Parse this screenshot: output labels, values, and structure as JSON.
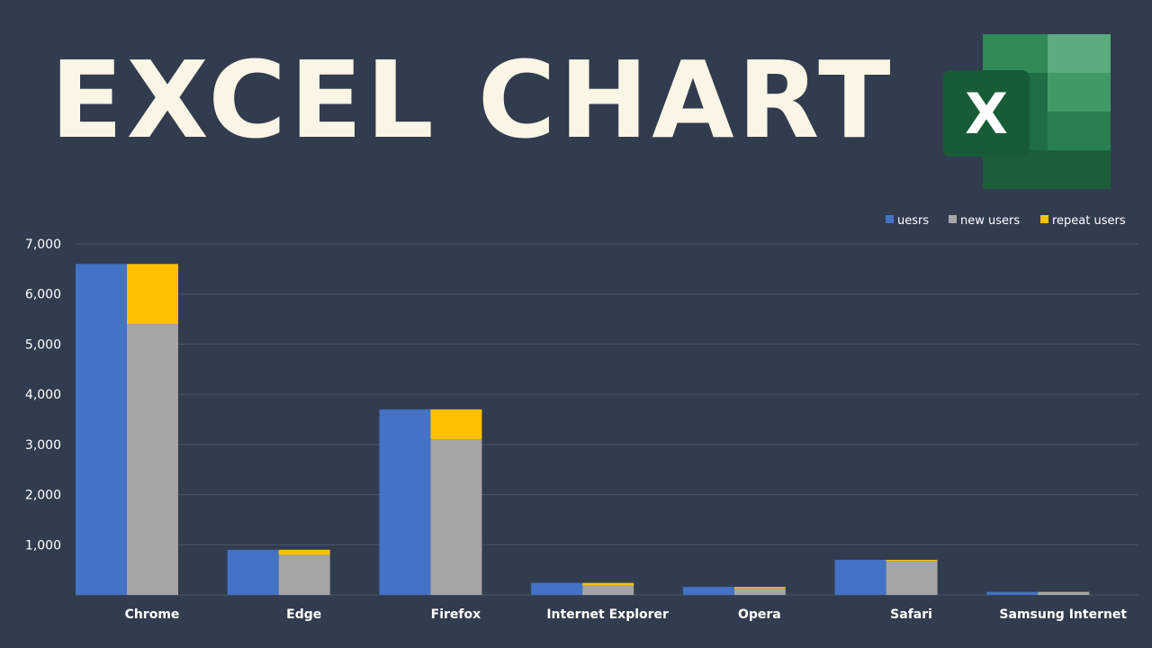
{
  "header": {
    "title": "EXCEL CHART",
    "logo_letter": "X",
    "logo_icon": "excel-logo-icon"
  },
  "colors": {
    "background": "#323c4f",
    "title": "#fbf5e6",
    "gridline": "#4a5467",
    "axis_text": "#ffffff",
    "logo_dark": "#1f6e43",
    "logo_mid": "#2f8a58",
    "logo_light": "#5aab7e"
  },
  "chart_data": {
    "type": "bar",
    "stacked_groups": true,
    "title": "",
    "xlabel": "",
    "ylabel": "",
    "categories": [
      "Chrome",
      "Edge",
      "Firefox",
      "Internet Explorer",
      "Opera",
      "Safari",
      "Samsung Internet"
    ],
    "series": [
      {
        "name": "uesrs",
        "color": "#4472c4",
        "stack": "users",
        "values": [
          6600,
          900,
          3700,
          240,
          160,
          700,
          60
        ]
      },
      {
        "name": "new users",
        "color": "#a5a5a5",
        "stack": "split",
        "values": [
          5400,
          800,
          3100,
          190,
          130,
          680,
          55
        ]
      },
      {
        "name": "repeat users",
        "color": "#ffc000",
        "stack": "split",
        "values": [
          1200,
          100,
          600,
          50,
          30,
          20,
          5
        ]
      }
    ],
    "ylim": [
      0,
      7000
    ],
    "yticks": [
      1000,
      2000,
      3000,
      4000,
      5000,
      6000,
      7000
    ],
    "ytick_labels": [
      "1,000",
      "2,000",
      "3,000",
      "4,000",
      "5,000",
      "6,000",
      "7,000"
    ],
    "grid": true,
    "legend_position": "top-right"
  }
}
